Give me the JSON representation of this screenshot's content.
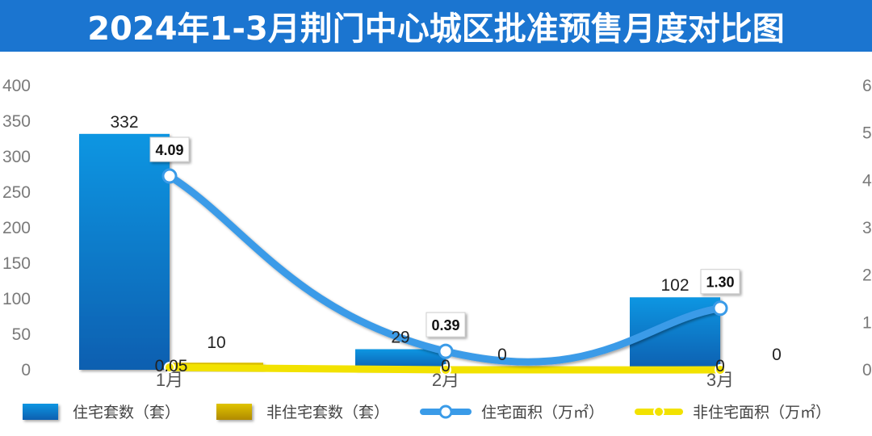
{
  "title": "2024年1-3月荆门中心城区批准预售月度对比图",
  "colors": {
    "title_bg": "#1b75d0",
    "bar_residential": "#1687d6",
    "bar_nonresidential": "#c9a800",
    "line_residential": "#3a9be8",
    "line_nonresidential": "#f2e200"
  },
  "chart_data": {
    "type": "bar",
    "categories": [
      "1月",
      "2月",
      "3月"
    ],
    "y_left": {
      "ylim": [
        0,
        400
      ],
      "ticks": [
        "0",
        "50",
        "100",
        "150",
        "200",
        "250",
        "300",
        "350",
        "400"
      ]
    },
    "y_right": {
      "ylim": [
        0,
        6
      ],
      "ticks": [
        "0",
        "1",
        "2",
        "3",
        "4",
        "5",
        "6"
      ]
    },
    "grid": false,
    "legend_position": "bottom",
    "series": [
      {
        "name": "住宅套数（套）",
        "type": "bar",
        "axis": "left",
        "values": [
          332,
          29,
          102
        ],
        "labels": [
          "332",
          "29",
          "102"
        ]
      },
      {
        "name": "非住宅套数（套）",
        "type": "bar",
        "axis": "left",
        "values": [
          10,
          0,
          0
        ],
        "labels": [
          "10",
          "0",
          "0"
        ]
      },
      {
        "name": "住宅面积（万㎡）",
        "type": "line",
        "axis": "right",
        "values": [
          4.09,
          0.39,
          1.3
        ],
        "labels": [
          "4.09",
          "0.39",
          "1.30"
        ]
      },
      {
        "name": "非住宅面积（万㎡）",
        "type": "line",
        "axis": "right",
        "values": [
          0.05,
          0,
          0
        ],
        "labels": [
          "0.05",
          "0",
          "0"
        ]
      }
    ]
  }
}
